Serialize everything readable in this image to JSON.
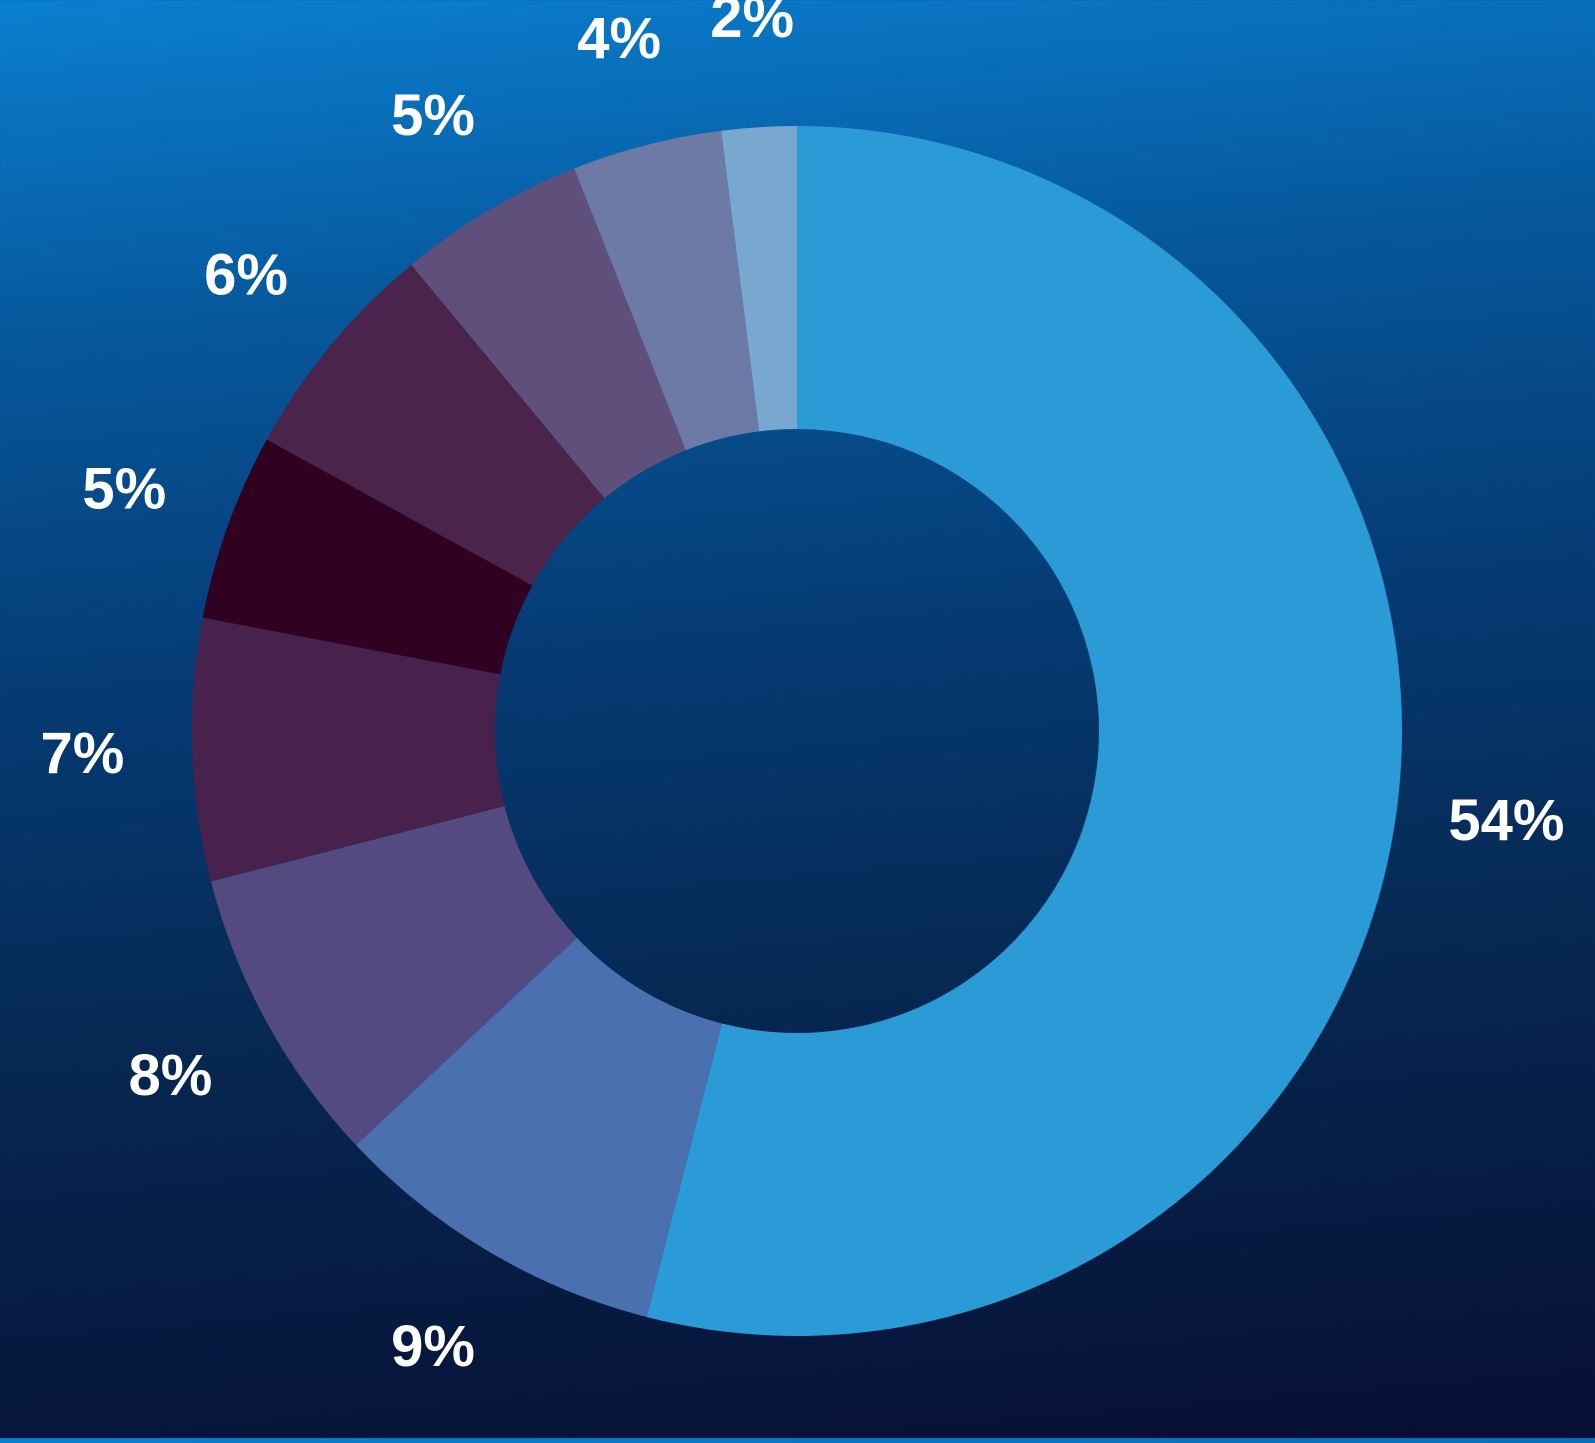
{
  "chart_data": {
    "type": "pie",
    "variant": "donut",
    "categories": [
      "",
      "",
      "",
      "",
      "",
      "",
      "",
      "",
      ""
    ],
    "values": [
      54,
      9,
      8,
      7,
      5,
      6,
      5,
      4,
      2
    ],
    "labels": [
      "54%",
      "9%",
      "8%",
      "7%",
      "5%",
      "6%",
      "5%",
      "4%",
      "2%"
    ],
    "colors": [
      "#2b9bd8",
      "#4a70b0",
      "#524a80",
      "#49214d",
      "#300121",
      "#4a244a",
      "#5f507b",
      "#6d7aa6",
      "#78a7d0"
    ],
    "title": "",
    "legend": "none",
    "start": "top",
    "direction": "clockwise"
  }
}
